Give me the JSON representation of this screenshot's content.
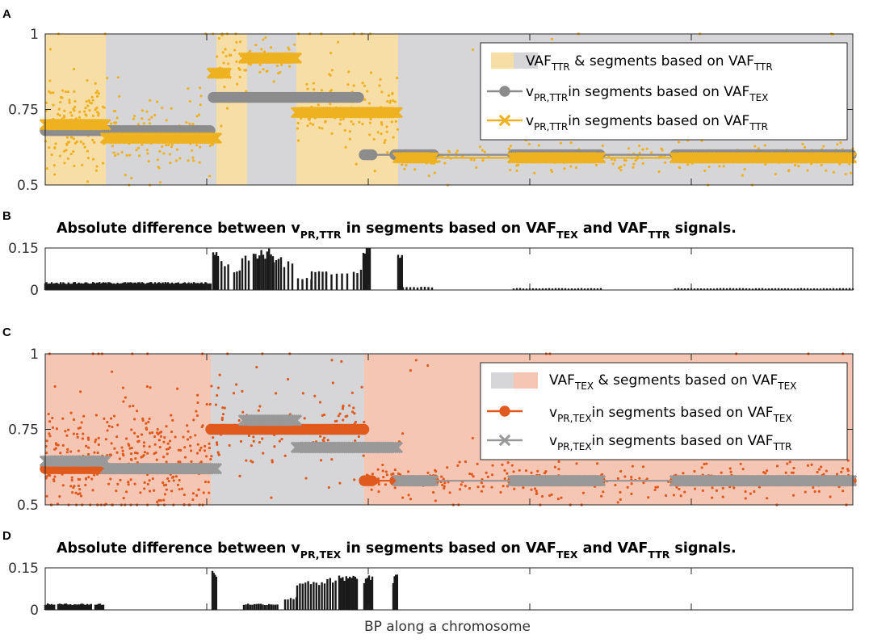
{
  "chart_data": [
    {
      "panel": "A",
      "type": "line",
      "ylim": [
        0.5,
        1
      ],
      "yticks": [
        {
          "v": 0.5,
          "label": "0.5"
        },
        {
          "v": 0.75,
          "label": "0.75"
        },
        {
          "v": 1,
          "label": "1"
        }
      ],
      "xlim": [
        0,
        1000
      ],
      "xticks": [
        200,
        400,
        600,
        800
      ],
      "regions": [
        {
          "x0": 0,
          "x1": 75,
          "color": "#f7dea6"
        },
        {
          "x0": 75,
          "x1": 212,
          "color": "#d6d6d9"
        },
        {
          "x0": 212,
          "x1": 250,
          "color": "#f7dea6"
        },
        {
          "x0": 250,
          "x1": 311,
          "color": "#d6d6d9"
        },
        {
          "x0": 311,
          "x1": 437,
          "color": "#f7dea6"
        },
        {
          "x0": 437,
          "x1": 1000,
          "color": "#d6d6d9"
        }
      ],
      "series": [
        {
          "name": "vPR,TTR in segments based on VAFTEX",
          "color": "#8c8c8c",
          "marker": "circle",
          "segments": [
            {
              "x0": 0,
              "x1": 205,
              "y": 0.68,
              "clusters": [
                [
                  0,
                  205
                ]
              ]
            },
            {
              "x0": 208,
              "x1": 390,
              "y": 0.79,
              "clusters": [
                [
                  208,
                  390
                ]
              ]
            },
            {
              "x0": 395,
              "x1": 1000,
              "y": 0.6,
              "clusters": [
                [
                  395,
                  405
                ],
                [
                  433,
                  482
                ],
                [
                  579,
                  688
                ],
                [
                  780,
                  960
                ],
                [
                  962,
                  1000
                ]
              ]
            }
          ]
        },
        {
          "name": "vPR,TTR in segments based on VAFTTR",
          "color": "#eeb221",
          "marker": "x",
          "segments": [
            {
              "x0": 0,
              "x1": 75,
              "y": 0.7,
              "clusters": [
                [
                  0,
                  75
                ]
              ]
            },
            {
              "x0": 75,
              "x1": 212,
              "y": 0.655,
              "clusters": [
                [
                  75,
                  212
                ]
              ]
            },
            {
              "x0": 207,
              "x1": 225,
              "y": 0.87,
              "clusters": [
                [
                  207,
                  225
                ]
              ]
            },
            {
              "x0": 246,
              "x1": 311,
              "y": 0.92,
              "clusters": [
                [
                  246,
                  311
                ]
              ]
            },
            {
              "x0": 311,
              "x1": 437,
              "y": 0.74,
              "clusters": [
                [
                  311,
                  437
                ]
              ]
            },
            {
              "x0": 437,
              "x1": 1000,
              "y": 0.59,
              "clusters": [
                [
                  437,
                  482
                ],
                [
                  579,
                  688
                ],
                [
                  780,
                  960
                ],
                [
                  962,
                  1000
                ]
              ]
            }
          ]
        }
      ],
      "scatter": {
        "name": "VAFTTR",
        "color": "#eeb221",
        "segments": [
          {
            "x0": 0,
            "x1": 75,
            "mean": 0.7,
            "n": 150,
            "spread": 0.12
          },
          {
            "x0": 75,
            "x1": 212,
            "mean": 0.655,
            "n": 130,
            "spread": 0.1
          },
          {
            "x0": 212,
            "x1": 250,
            "mean": 0.88,
            "n": 40,
            "spread": 0.08
          },
          {
            "x0": 250,
            "x1": 311,
            "mean": 0.92,
            "n": 40,
            "spread": 0.07
          },
          {
            "x0": 311,
            "x1": 437,
            "mean": 0.74,
            "n": 130,
            "spread": 0.1
          },
          {
            "x0": 437,
            "x1": 1000,
            "mean": 0.59,
            "n": 260,
            "spread": 0.04
          }
        ]
      },
      "legend": {
        "items": [
          {
            "kind": "patch",
            "text": "VAF",
            "sub": "TTR",
            "tail": " & segments based on VAF",
            "tailsub": "TTR"
          },
          {
            "kind": "line-circle",
            "text": "v",
            "sub": "PR,TTR",
            "tail": "in segments based on VAF",
            "tailsub": "TEX"
          },
          {
            "kind": "line-x",
            "text": "v",
            "sub": "PR,TTR",
            "tail": "in segments based on VAF",
            "tailsub": "TTR"
          }
        ]
      }
    },
    {
      "panel": "B",
      "type": "bar",
      "title": {
        "pre": "Absolute difference between v",
        "sub1": "PR,TTR",
        "mid": " in segments based on VAF",
        "sub2": "TEX",
        "mid2": " and VAF",
        "sub3": "TTR",
        "post": " signals."
      },
      "ylim": [
        0,
        0.15
      ],
      "yticks": [
        {
          "v": 0,
          "label": "0"
        },
        {
          "v": 0.15,
          "label": "0.15"
        }
      ],
      "xlim": [
        0,
        1000
      ],
      "bar_groups": [
        {
          "x0": 0,
          "x1": 205,
          "value": 0.025,
          "step": 1.6
        },
        {
          "x0": 208,
          "x1": 214,
          "value": 0.14,
          "step": 2.0
        },
        {
          "x0": 214,
          "x1": 230,
          "value": 0.1,
          "step": 4.2
        },
        {
          "x0": 234,
          "x1": 241,
          "value": 0.07,
          "step": 3.4
        },
        {
          "x0": 244,
          "x1": 252,
          "value": 0.11,
          "step": 4.0
        },
        {
          "x0": 258,
          "x1": 283,
          "value": 0.13,
          "step": 2.4
        },
        {
          "x0": 283,
          "x1": 292,
          "value": 0.11,
          "step": 3.0
        },
        {
          "x0": 296,
          "x1": 306,
          "value": 0.09,
          "step": 5.0
        },
        {
          "x0": 313,
          "x1": 330,
          "value": 0.04,
          "step": 5.5
        },
        {
          "x0": 330,
          "x1": 348,
          "value": 0.06,
          "step": 4.5
        },
        {
          "x0": 348,
          "x1": 376,
          "value": 0.06,
          "step": 6.5
        },
        {
          "x0": 382,
          "x1": 392,
          "value": 0.07,
          "step": 4.5
        },
        {
          "x0": 394,
          "x1": 402,
          "value": 0.14,
          "step": 2.0
        },
        {
          "x0": 437,
          "x1": 442,
          "value": 0.13,
          "step": 1.6
        },
        {
          "x0": 443,
          "x1": 480,
          "value": 0.01,
          "step": 4.5
        },
        {
          "x0": 580,
          "x1": 690,
          "value": 0.006,
          "step": 4.0
        },
        {
          "x0": 780,
          "x1": 1000,
          "value": 0.006,
          "step": 4.0
        }
      ]
    },
    {
      "panel": "C",
      "type": "line",
      "ylim": [
        0.5,
        1
      ],
      "yticks": [
        {
          "v": 0.5,
          "label": "0.5"
        },
        {
          "v": 0.75,
          "label": "0.75"
        },
        {
          "v": 1,
          "label": "1"
        }
      ],
      "xlim": [
        0,
        1000
      ],
      "xticks": [
        200,
        400,
        600,
        800
      ],
      "regions": [
        {
          "x0": 0,
          "x1": 205,
          "color": "#f6c6b4"
        },
        {
          "x0": 205,
          "x1": 395,
          "color": "#d6d6d9"
        },
        {
          "x0": 395,
          "x1": 1000,
          "color": "#f6c6b4"
        }
      ],
      "series": [
        {
          "name": "vPR,TEX in segments based on VAFTEX",
          "color": "#e05a1e",
          "marker": "circle",
          "segments": [
            {
              "x0": 0,
              "x1": 205,
              "y": 0.62,
              "clusters": [
                [
                  0,
                  205
                ]
              ]
            },
            {
              "x0": 205,
              "x1": 395,
              "y": 0.75,
              "clusters": [
                [
                  205,
                  395
                ]
              ]
            },
            {
              "x0": 395,
              "x1": 1000,
              "y": 0.58,
              "clusters": [
                [
                  395,
                  405
                ],
                [
                  433,
                  482
                ],
                [
                  579,
                  688
                ],
                [
                  780,
                  960
                ],
                [
                  962,
                  1000
                ]
              ]
            }
          ]
        },
        {
          "name": "vPR,TEX in segments based on VAFTTR",
          "color": "#999999",
          "marker": "x",
          "segments": [
            {
              "x0": 0,
              "x1": 75,
              "y": 0.645,
              "clusters": [
                [
                  0,
                  75
                ]
              ]
            },
            {
              "x0": 75,
              "x1": 212,
              "y": 0.62,
              "clusters": [
                [
                  75,
                  212
                ]
              ]
            },
            {
              "x0": 246,
              "x1": 311,
              "y": 0.78,
              "clusters": [
                [
                  246,
                  311
                ]
              ]
            },
            {
              "x0": 311,
              "x1": 437,
              "y": 0.69,
              "clusters": [
                [
                  311,
                  437
                ]
              ]
            },
            {
              "x0": 437,
              "x1": 1000,
              "y": 0.58,
              "clusters": [
                [
                  437,
                  482
                ],
                [
                  579,
                  688
                ],
                [
                  780,
                  960
                ],
                [
                  962,
                  1000
                ]
              ]
            }
          ]
        }
      ],
      "scatter": {
        "name": "VAFTEX",
        "color": "#e05a1e",
        "segments": [
          {
            "x0": 0,
            "x1": 205,
            "mean": 0.64,
            "n": 380,
            "spread": 0.15
          },
          {
            "x0": 205,
            "x1": 395,
            "mean": 0.75,
            "n": 150,
            "spread": 0.12
          },
          {
            "x0": 395,
            "x1": 1000,
            "mean": 0.58,
            "n": 330,
            "spread": 0.05
          }
        ]
      },
      "legend": {
        "items": [
          {
            "kind": "patch",
            "text": "VAF",
            "sub": "TEX",
            "tail": " & segments based on VAF",
            "tailsub": "TEX"
          },
          {
            "kind": "line-circle",
            "text": "v",
            "sub": "PR,TEX",
            "tail": "in segments based on VAF",
            "tailsub": "TEX"
          },
          {
            "kind": "line-x",
            "text": "v",
            "sub": "PR,TEX",
            "tail": "in segments based on VAF",
            "tailsub": "TTR"
          }
        ]
      }
    },
    {
      "panel": "D",
      "type": "bar",
      "title": {
        "pre": "Absolute difference between v",
        "sub1": "PR,TEX",
        "mid": " in segments based on VAF",
        "sub2": "TEX",
        "mid2": " and VAF",
        "sub3": "TTR",
        "post": " signals."
      },
      "ylim": [
        0,
        0.15
      ],
      "yticks": [
        {
          "v": 0,
          "label": "0"
        },
        {
          "v": 0.15,
          "label": "0.15"
        }
      ],
      "xlim": [
        0,
        1000
      ],
      "bar_groups": [
        {
          "x0": 0,
          "x1": 12,
          "value": 0.02,
          "step": 1.6
        },
        {
          "x0": 16,
          "x1": 26,
          "value": 0.02,
          "step": 2.0
        },
        {
          "x0": 28,
          "x1": 58,
          "value": 0.02,
          "step": 1.6
        },
        {
          "x0": 62,
          "x1": 72,
          "value": 0.02,
          "step": 2.0
        },
        {
          "x0": 207,
          "x1": 212,
          "value": 0.13,
          "step": 1.6
        },
        {
          "x0": 246,
          "x1": 290,
          "value": 0.02,
          "step": 2.6
        },
        {
          "x0": 297,
          "x1": 312,
          "value": 0.04,
          "step": 3.5
        },
        {
          "x0": 312,
          "x1": 360,
          "value": 0.1,
          "step": 3.4
        },
        {
          "x0": 364,
          "x1": 387,
          "value": 0.11,
          "step": 2.2
        },
        {
          "x0": 395,
          "x1": 405,
          "value": 0.11,
          "step": 2.0
        },
        {
          "x0": 431,
          "x1": 436,
          "value": 0.11,
          "step": 1.6
        }
      ],
      "xlabel": "BP along a chromosome"
    }
  ],
  "panel_letters": [
    "A",
    "B",
    "C",
    "D"
  ],
  "colors": {
    "tex_accent": "#e05a1e",
    "ttr_accent": "#eeb221",
    "gray_line": "#8c8c8c",
    "frame": "#262626"
  }
}
